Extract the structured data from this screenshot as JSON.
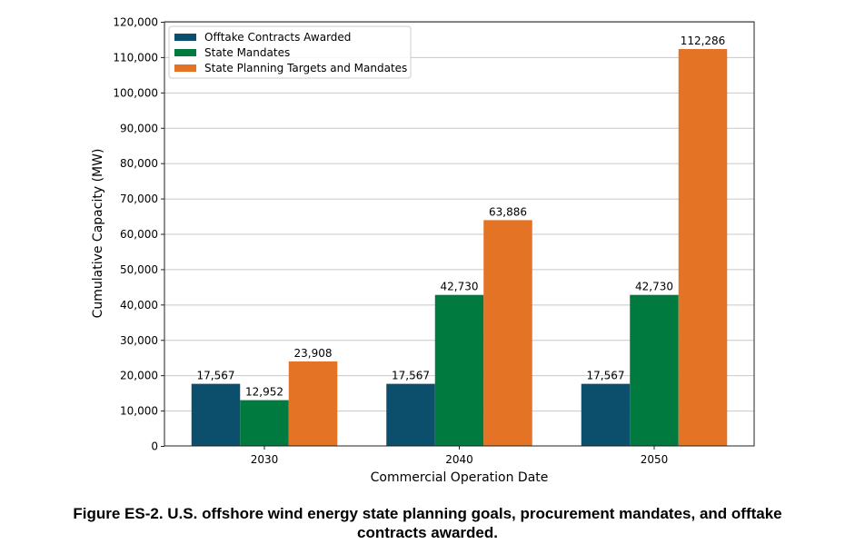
{
  "chart_data": {
    "type": "bar",
    "categories": [
      "2030",
      "2040",
      "2050"
    ],
    "series": [
      {
        "name": "Offtake Contracts Awarded",
        "color": "#0b4f6c",
        "values": [
          17567,
          17567,
          17567
        ],
        "labels": [
          "17,567",
          "17,567",
          "17,567"
        ]
      },
      {
        "name": "State Mandates",
        "color": "#007a3e",
        "values": [
          12952,
          42730,
          42730
        ],
        "labels": [
          "12,952",
          "42,730",
          "42,730"
        ]
      },
      {
        "name": "State Planning Targets and Mandates",
        "color": "#e47325",
        "values": [
          23908,
          63886,
          112286
        ],
        "labels": [
          "23,908",
          "63,886",
          "112,286"
        ]
      }
    ],
    "xlabel": "Commercial Operation Date",
    "ylabel": "Cumulative Capacity (MW)",
    "ylim": [
      0,
      120000
    ],
    "yticks": [
      0,
      10000,
      20000,
      30000,
      40000,
      50000,
      60000,
      70000,
      80000,
      90000,
      100000,
      110000,
      120000
    ],
    "ytick_labels": [
      "0",
      "10,000",
      "20,000",
      "30,000",
      "40,000",
      "50,000",
      "60,000",
      "70,000",
      "80,000",
      "90,000",
      "100,000",
      "110,000",
      "120,000"
    ],
    "grid": "horizontal",
    "legend_position": "top-left"
  },
  "caption": {
    "line1": "Figure ES-2. U.S. offshore wind energy state planning goals, procurement mandates, and offtake",
    "line2": "contracts awarded."
  }
}
